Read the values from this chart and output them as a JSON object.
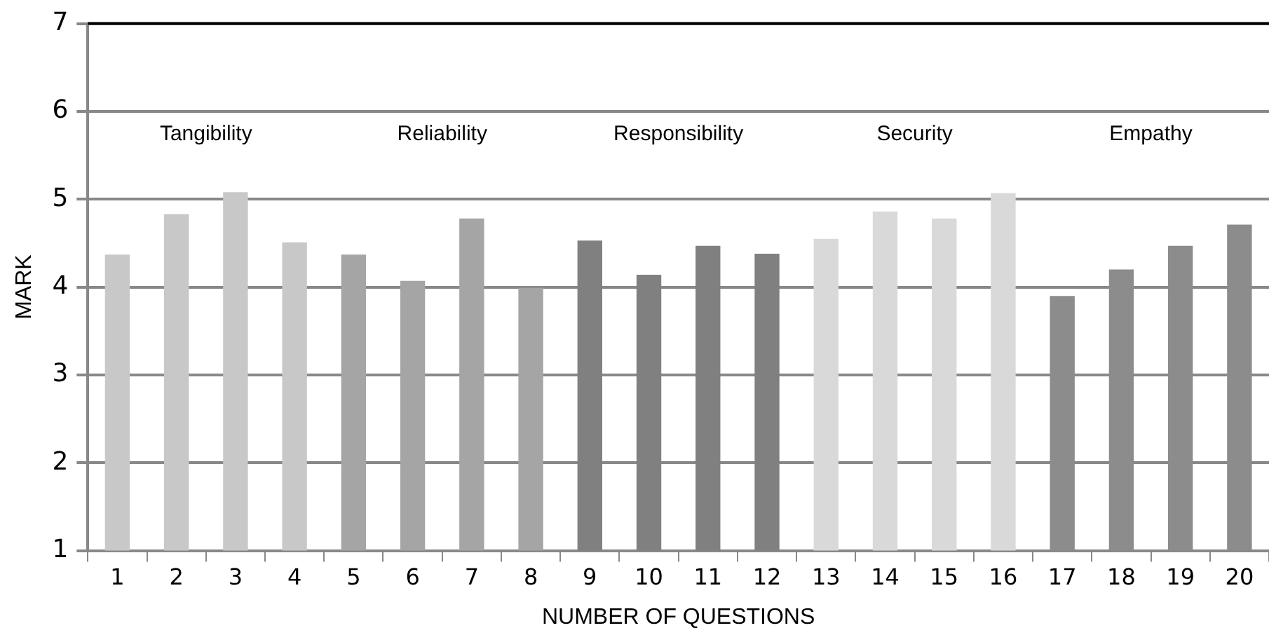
{
  "chart_data": {
    "type": "bar",
    "xlabel": "NUMBER OF QUESTIONS",
    "ylabel": "MARK",
    "categories": [
      "1",
      "2",
      "3",
      "4",
      "5",
      "6",
      "7",
      "8",
      "9",
      "10",
      "11",
      "12",
      "13",
      "14",
      "15",
      "16",
      "17",
      "18",
      "19",
      "20"
    ],
    "values": [
      4.37,
      4.83,
      5.08,
      4.51,
      4.37,
      4.07,
      4.78,
      3.99,
      4.53,
      4.14,
      4.47,
      4.38,
      4.55,
      4.86,
      4.78,
      5.07,
      3.9,
      4.2,
      4.47,
      4.71
    ],
    "colors": [
      "#c8c8c8",
      "#c8c8c8",
      "#c8c8c8",
      "#c8c8c8",
      "#a5a5a5",
      "#a5a5a5",
      "#a5a5a5",
      "#a5a5a5",
      "#808080",
      "#808080",
      "#808080",
      "#808080",
      "#d9d9d9",
      "#d9d9d9",
      "#d9d9d9",
      "#d9d9d9",
      "#8c8c8c",
      "#8c8c8c",
      "#8c8c8c",
      "#8c8c8c"
    ],
    "annotations": [
      "Tangibility",
      "Reliability",
      "Responsibility",
      "Security",
      "Empathy"
    ],
    "ylim": [
      1,
      7
    ],
    "yticks": [
      1,
      2,
      3,
      4,
      5,
      6,
      7
    ],
    "grid": "y"
  }
}
